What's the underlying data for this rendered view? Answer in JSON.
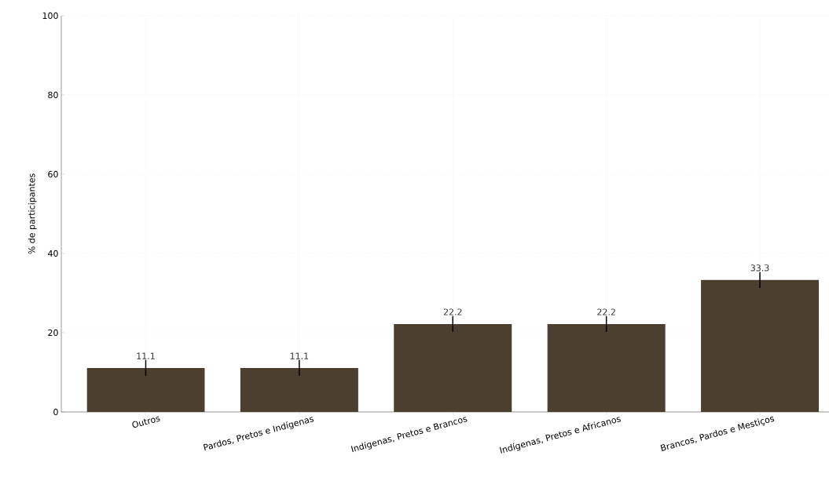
{
  "chart_data": {
    "type": "bar",
    "ylabel": "% de participantes",
    "categories": [
      "Outros",
      "Pardos, Pretos e Indígenas",
      "Indígenas, Pretos e Brancos",
      "Indígenas, Pretos e Africanos",
      "Brancos, Pardos e Mestiços"
    ],
    "values": [
      11.1,
      11.1,
      22.2,
      22.2,
      33.3
    ],
    "errors": [
      2,
      2,
      2,
      2,
      2
    ],
    "color": "#4b3f30",
    "ylim": [
      0,
      100
    ],
    "yticks": [
      0,
      20,
      40,
      60,
      80,
      100
    ],
    "grid": true,
    "data_labels": true
  }
}
